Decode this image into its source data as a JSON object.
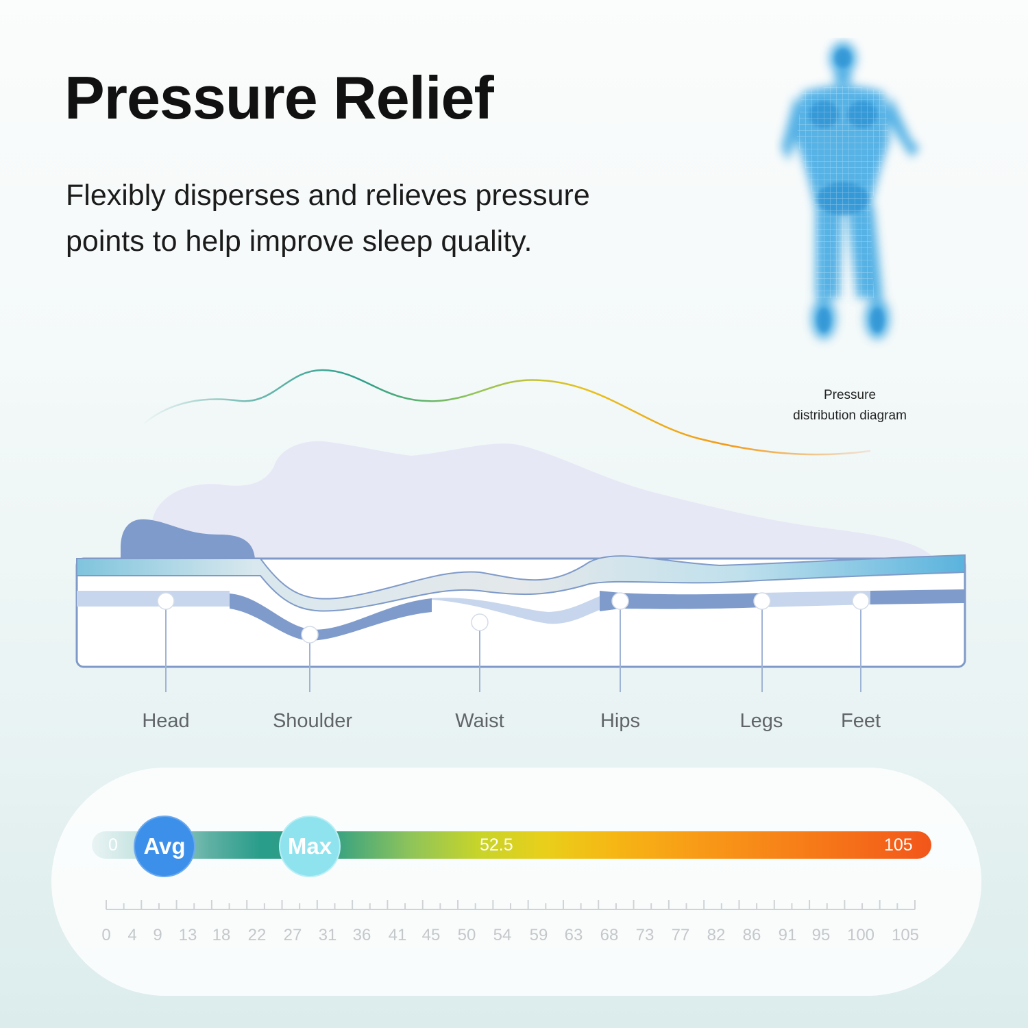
{
  "header": {
    "title": "Pressure Relief",
    "subtitle_line1": "Flexibly disperses and relieves pressure",
    "subtitle_line2": "points to help improve sleep quality."
  },
  "legend": {
    "line1": "Pressure",
    "line2": "distribution diagram"
  },
  "zones": [
    "Head",
    "Shoulder",
    "Waist",
    "Hips",
    "Legs",
    "Feet"
  ],
  "scale": {
    "min_label": "0",
    "mid_label": "52.5",
    "max_label": "105",
    "avg_badge": "Avg",
    "max_badge": "Max",
    "ticks": [
      "0",
      "4",
      "9",
      "13",
      "18",
      "22",
      "27",
      "31",
      "36",
      "41",
      "45",
      "50",
      "54",
      "59",
      "63",
      "68",
      "73",
      "77",
      "82",
      "86",
      "91",
      "95",
      "100",
      "105"
    ]
  },
  "colors": {
    "avg_badge": "#3d90ea",
    "max_badge": "#8fe3ee",
    "mattress_outline": "#7f9ac8",
    "support_layer": "#7f9bcb",
    "body_silhouette": "#e6e8f6",
    "figure": "#2f9fe0"
  },
  "icons": {
    "figure": "pressure-map-human-figure",
    "pillow": "pillow-shape"
  }
}
